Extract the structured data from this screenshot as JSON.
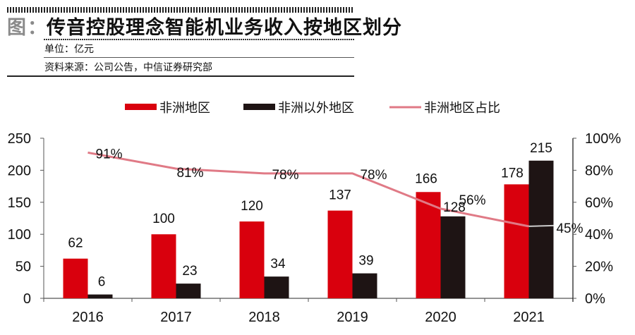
{
  "header": {
    "figure_label": "图：",
    "title": "传音控股理念智能机业务收入按地区划分",
    "unit": "单位：亿元",
    "source": "资料来源：公司公告，中信证券研究部"
  },
  "colors": {
    "africa": "#d9000d",
    "non_africa": "#1e1414",
    "share_line": "#e07a86",
    "axis": "#555555"
  },
  "chart_data": {
    "type": "bar",
    "title": "传音控股理念智能机业务收入按地区划分",
    "xlabel": "",
    "ylabel": "",
    "categories": [
      "2016",
      "2017",
      "2018",
      "2019",
      "2020",
      "2021"
    ],
    "series": [
      {
        "name": "非洲地区",
        "kind": "bar",
        "axis": "left",
        "values": [
          62,
          100,
          120,
          137,
          166,
          178
        ],
        "labels": [
          "62",
          "100",
          "120",
          "137",
          "166",
          "178"
        ]
      },
      {
        "name": "非洲以外地区",
        "kind": "bar",
        "axis": "left",
        "values": [
          6,
          23,
          34,
          39,
          128,
          215
        ],
        "labels": [
          "6",
          "23",
          "34",
          "39",
          "128",
          "215"
        ]
      },
      {
        "name": "非洲地区占比",
        "kind": "line",
        "axis": "right",
        "values": [
          91,
          81,
          78,
          78,
          56,
          45
        ],
        "labels": [
          "91%",
          "81%",
          "78%",
          "78%",
          "56%",
          "45%"
        ]
      }
    ],
    "ylim": [
      0,
      250
    ],
    "yticks": [
      "0",
      "50",
      "100",
      "150",
      "200",
      "250"
    ],
    "y2lim": [
      0,
      100
    ],
    "y2ticks": [
      "0%",
      "20%",
      "40%",
      "60%",
      "80%",
      "100%"
    ],
    "legend": "top",
    "grid": false
  }
}
